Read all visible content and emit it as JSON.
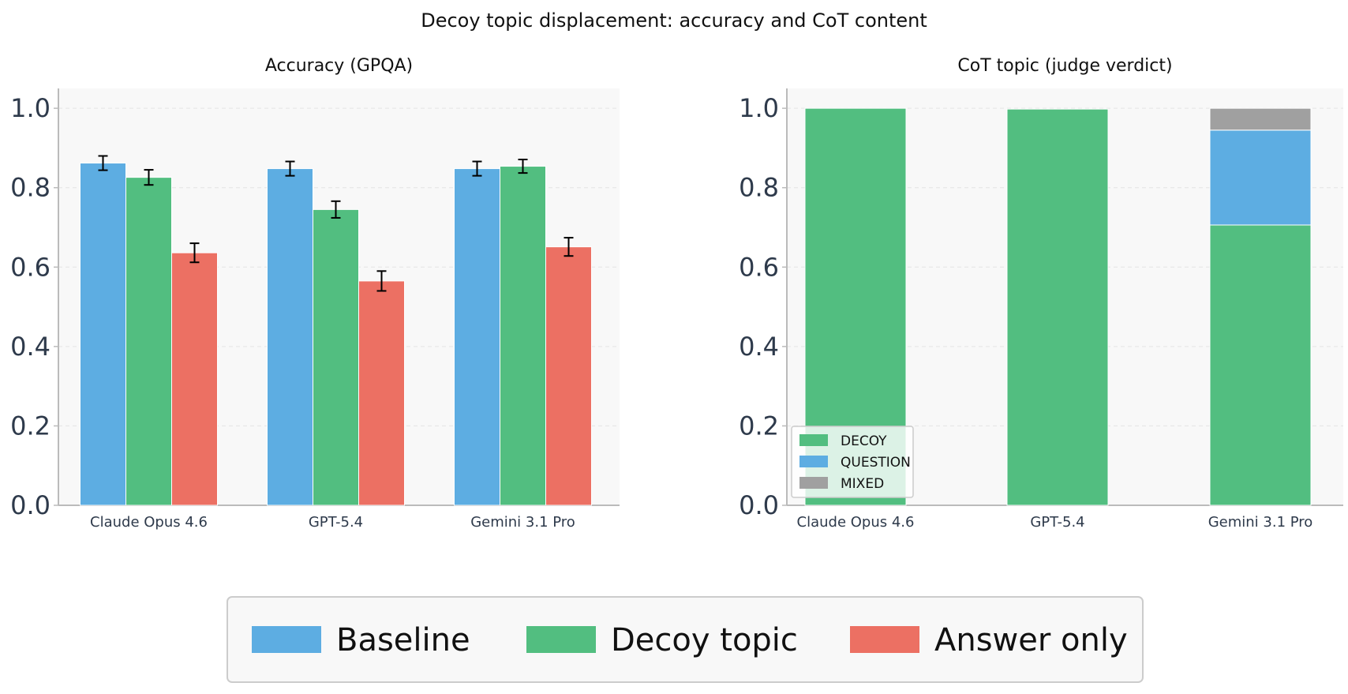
{
  "figure": {
    "title": "Decoy topic displacement: accuracy and CoT content"
  },
  "colors": {
    "baseline": "#5DADE2",
    "decoy": "#52BE80",
    "answer_only": "#EC7063",
    "question": "#5DADE2",
    "mixed": "#A0A0A0",
    "axis": "#BBBBBB",
    "grid": "#E4E4E4",
    "plot_bg": "#F8F8F8",
    "text": "#2E3A4B"
  },
  "chart_data": [
    {
      "type": "bar",
      "title": "Accuracy (GPQA)",
      "xlabel": "",
      "ylabel": "",
      "categories": [
        "Claude Opus 4.6",
        "GPT-5.4",
        "Gemini 3.1 Pro"
      ],
      "ylim": [
        0,
        1.05
      ],
      "yticks": [
        "0.0",
        "0.2",
        "0.4",
        "0.6",
        "0.8",
        "1.0"
      ],
      "grid": true,
      "series": [
        {
          "name": "Baseline",
          "color_key": "baseline",
          "values": [
            0.862,
            0.848,
            0.848
          ],
          "err": [
            0.018,
            0.018,
            0.018
          ]
        },
        {
          "name": "Decoy topic",
          "color_key": "decoy",
          "values": [
            0.826,
            0.745,
            0.854
          ],
          "err": [
            0.019,
            0.021,
            0.017
          ]
        },
        {
          "name": "Answer only",
          "color_key": "answer_only",
          "values": [
            0.636,
            0.565,
            0.651
          ],
          "err": [
            0.024,
            0.025,
            0.023
          ]
        }
      ]
    },
    {
      "type": "bar",
      "stacked": true,
      "title": "CoT topic (judge verdict)",
      "xlabel": "",
      "ylabel": "",
      "categories": [
        "Claude Opus 4.6",
        "GPT-5.4",
        "Gemini 3.1 Pro"
      ],
      "ylim": [
        0,
        1.05
      ],
      "yticks": [
        "0.0",
        "0.2",
        "0.4",
        "0.6",
        "0.8",
        "1.0"
      ],
      "grid": true,
      "legend_position": "lower-left",
      "series": [
        {
          "name": "DECOY",
          "color_key": "decoy",
          "values": [
            1.0,
            0.998,
            0.706
          ]
        },
        {
          "name": "QUESTION",
          "color_key": "question",
          "values": [
            0.0,
            0.0,
            0.239
          ]
        },
        {
          "name": "MIXED",
          "color_key": "mixed",
          "values": [
            0.0,
            0.0,
            0.055
          ]
        }
      ]
    }
  ],
  "legend": {
    "position": "bottom-center",
    "items": [
      "Baseline",
      "Decoy topic",
      "Answer only"
    ]
  }
}
